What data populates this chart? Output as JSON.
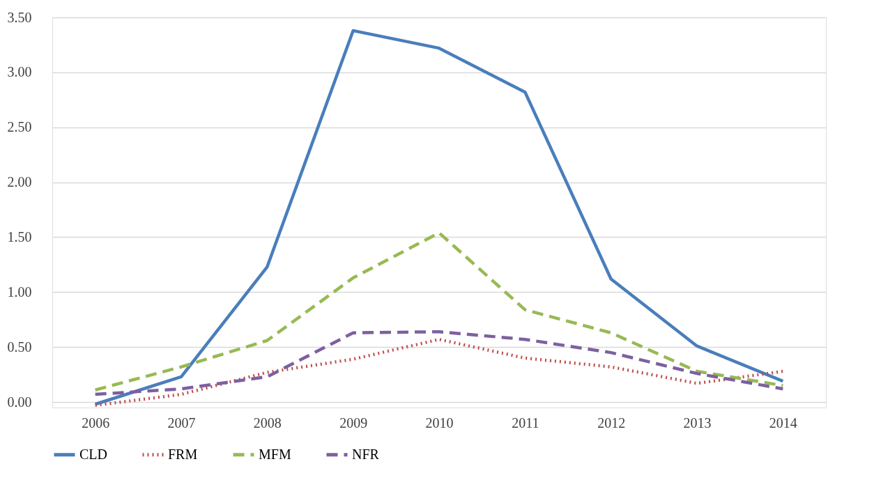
{
  "chart_data": {
    "type": "line",
    "categories": [
      "2006",
      "2007",
      "2008",
      "2009",
      "2010",
      "2011",
      "2012",
      "2013",
      "2014"
    ],
    "series": [
      {
        "name": "CLD",
        "color": "#4a7ebb",
        "line_style": "solid",
        "values": [
          -0.02,
          0.23,
          1.23,
          3.38,
          3.22,
          2.82,
          1.12,
          0.51,
          0.19
        ]
      },
      {
        "name": "FRM",
        "color": "#be4b48",
        "line_style": "dotted",
        "values": [
          -0.03,
          0.07,
          0.27,
          0.39,
          0.57,
          0.4,
          0.32,
          0.17,
          0.28
        ]
      },
      {
        "name": "MFM",
        "color": "#98b954",
        "line_style": "dashed",
        "values": [
          0.11,
          0.32,
          0.56,
          1.13,
          1.54,
          0.84,
          0.63,
          0.28,
          0.15
        ]
      },
      {
        "name": "NFR",
        "color": "#7d60a0",
        "line_style": "dashed",
        "values": [
          0.07,
          0.12,
          0.23,
          0.63,
          0.64,
          0.57,
          0.45,
          0.26,
          0.12
        ]
      }
    ],
    "ylim": [
      -0.05,
      3.5
    ],
    "yticks": [
      {
        "value": 0,
        "label": "0.00"
      },
      {
        "value": 0.5,
        "label": "0.50"
      },
      {
        "value": 1,
        "label": "1.00"
      },
      {
        "value": 1.5,
        "label": "1.50"
      },
      {
        "value": 2,
        "label": "2.00"
      },
      {
        "value": 2.5,
        "label": "2.50"
      },
      {
        "value": 3,
        "label": "3.00"
      },
      {
        "value": 3.5,
        "label": "3.50"
      }
    ],
    "grid": "y",
    "legend": "bottom",
    "marker": "none"
  }
}
